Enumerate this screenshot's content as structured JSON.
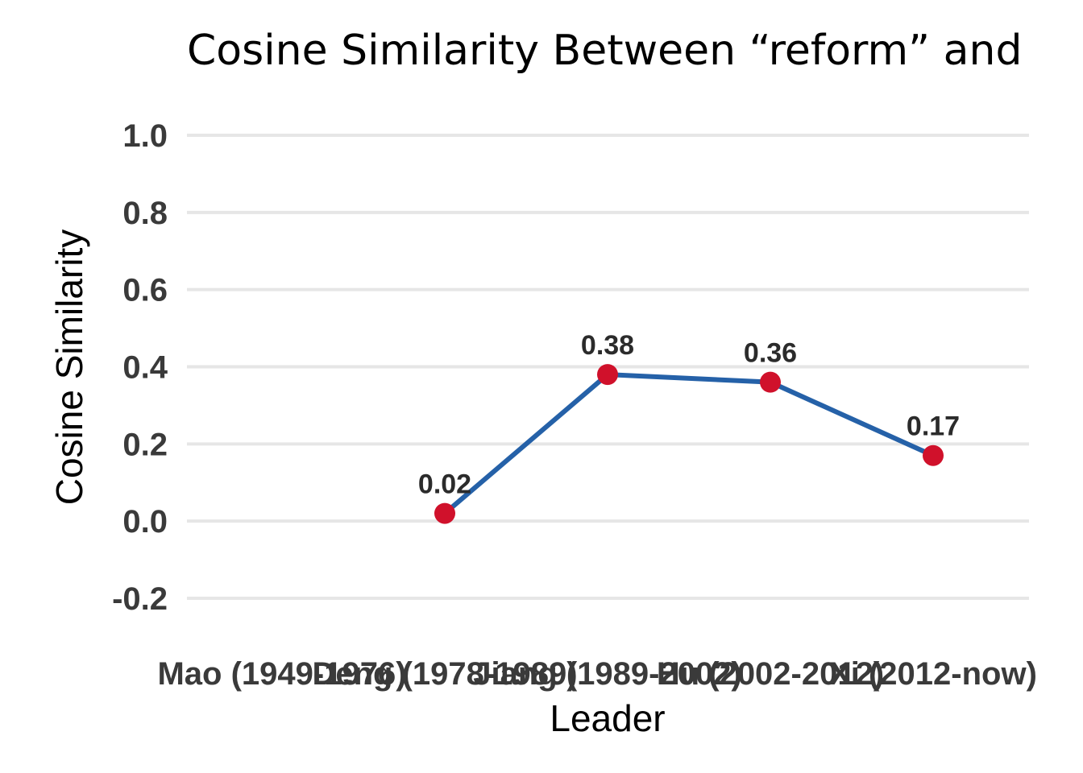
{
  "chart_data": {
    "type": "line",
    "title": "Cosine Similarity Between “reform” and",
    "xlabel": "Leader",
    "ylabel": "Cosine Similarity",
    "categories": [
      "Mao (1949-1976)",
      "Deng (1978-1989)",
      "Jiang (1989-2002)",
      "Hu (2002-2012)",
      "Xi (2012-now)"
    ],
    "series": [
      {
        "values": [
          null,
          0.02,
          0.38,
          0.36,
          0.17
        ],
        "data_labels": [
          "",
          "0.02",
          "0.38",
          "0.36",
          "0.17"
        ]
      }
    ],
    "yticks": [
      "-0.2",
      "0.0",
      "0.2",
      "0.4",
      "0.6",
      "0.8",
      "1.0"
    ],
    "ylim": [
      -0.2,
      1.0
    ],
    "grid": true,
    "legend": "none",
    "colors": {
      "line": "#2561a8",
      "marker": "#d0112b",
      "grid": "#e6e6e6"
    }
  }
}
